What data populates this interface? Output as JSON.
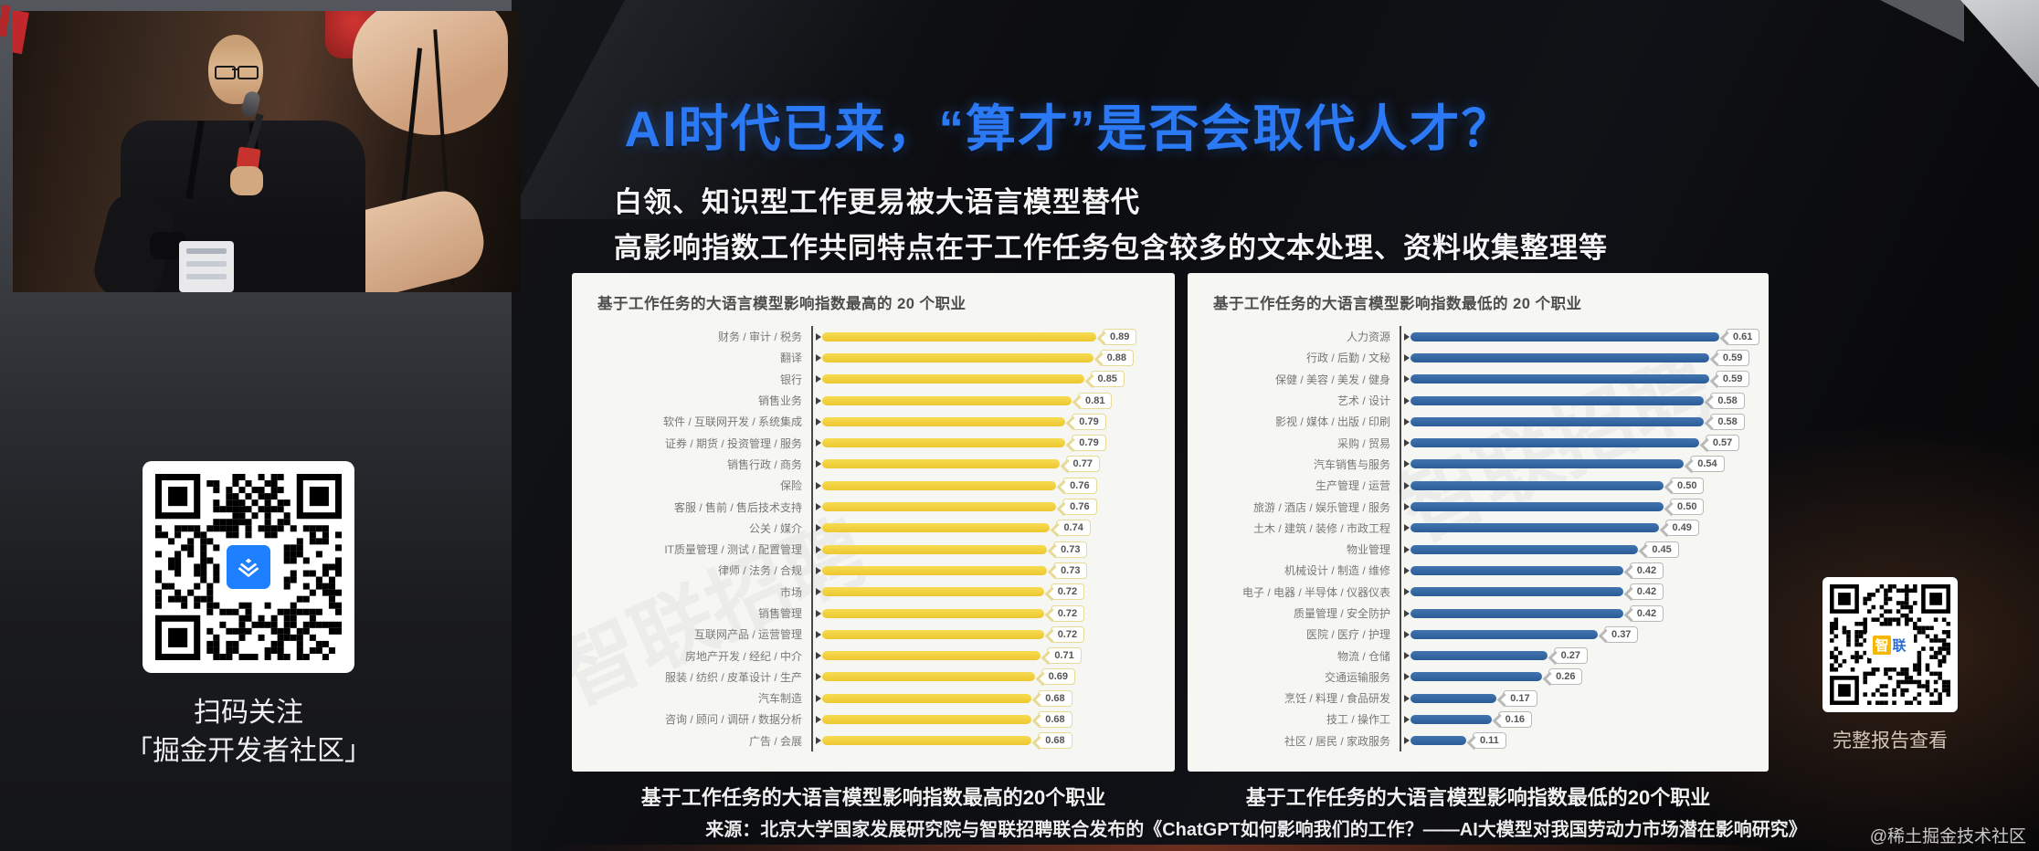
{
  "slide": {
    "title": "AI时代已来，“算才”是否会取代人才？",
    "subtitle1": "白领、知识型工作更易被大语言模型替代",
    "subtitle2": "高影响指数工作共同特点在于工作任务包含较多的文本处理、资料收集整理等",
    "caption_left": "基于工作任务的大语言模型影响指数最高的20个职业",
    "caption_right": "基于工作任务的大语言模型影响指数最低的20个职业",
    "chart_watermark": "智联招聘",
    "title_color": "#2b79f4"
  },
  "qr_left": {
    "line1": "扫码关注",
    "line2": "「掘金开发者社区」",
    "logo": "juejin-logo",
    "logo_color": "#1e80ff"
  },
  "qr_right": {
    "label": "完整报告查看",
    "logo_char1": "智",
    "logo_char2": "联"
  },
  "footer": {
    "source": "来源：北京大学国家发展研究院与智联招聘联合发布的《ChatGPT如何影响我们的工作？——AI大模型对我国劳动力市场潜在影响研究》",
    "watermark": "@稀土掘金技术社区"
  },
  "chart_data": [
    {
      "type": "bar",
      "orientation": "horizontal",
      "title": "基于工作任务的大语言模型影响指数最高的 20 个职业",
      "bar_color": "#EFC930",
      "xlim": [
        0,
        1
      ],
      "grid": false,
      "value_labels": true,
      "categories": [
        "财务 / 审计 / 税务",
        "翻译",
        "银行",
        "销售业务",
        "软件 / 互联网开发 / 系统集成",
        "证券 / 期货 / 投资管理 / 服务",
        "销售行政 / 商务",
        "保险",
        "客服 / 售前 / 售后技术支持",
        "公关 / 媒介",
        "IT质量管理 / 测试 / 配置管理",
        "律师 / 法务 / 合规",
        "市场",
        "销售管理",
        "互联网产品 / 运营管理",
        "房地产开发 / 经纪 / 中介",
        "服装 / 纺织 / 皮革设计 / 生产",
        "汽车制造",
        "咨询 / 顾问 / 调研 / 数据分析",
        "广告 / 会展"
      ],
      "values": [
        0.89,
        0.88,
        0.85,
        0.81,
        0.79,
        0.79,
        0.77,
        0.76,
        0.76,
        0.74,
        0.73,
        0.73,
        0.72,
        0.72,
        0.72,
        0.71,
        0.69,
        0.68,
        0.68,
        0.68
      ]
    },
    {
      "type": "bar",
      "orientation": "horizontal",
      "title": "基于工作任务的大语言模型影响指数最低的 20 个职业",
      "bar_color": "#30639F",
      "xlim": [
        0,
        1
      ],
      "grid": false,
      "value_labels": true,
      "categories": [
        "人力资源",
        "行政 / 后勤 / 文秘",
        "保健 / 美容 / 美发 / 健身",
        "艺术 / 设计",
        "影视 / 媒体 / 出版 / 印刷",
        "采购 / 贸易",
        "汽车销售与服务",
        "生产管理 / 运营",
        "旅游 / 酒店 / 娱乐管理 / 服务",
        "土木 / 建筑 / 装修 / 市政工程",
        "物业管理",
        "机械设计 / 制造 / 维修",
        "电子 / 电器 / 半导体 / 仪器仪表",
        "质量管理 / 安全防护",
        "医院 / 医疗 / 护理",
        "物流 / 仓储",
        "交通运输服务",
        "烹饪 / 料理 / 食品研发",
        "技工 / 操作工",
        "社区 / 居民 / 家政服务"
      ],
      "values": [
        0.61,
        0.59,
        0.59,
        0.58,
        0.58,
        0.57,
        0.54,
        0.5,
        0.5,
        0.49,
        0.45,
        0.42,
        0.42,
        0.42,
        0.37,
        0.27,
        0.26,
        0.17,
        0.16,
        0.11
      ]
    }
  ]
}
